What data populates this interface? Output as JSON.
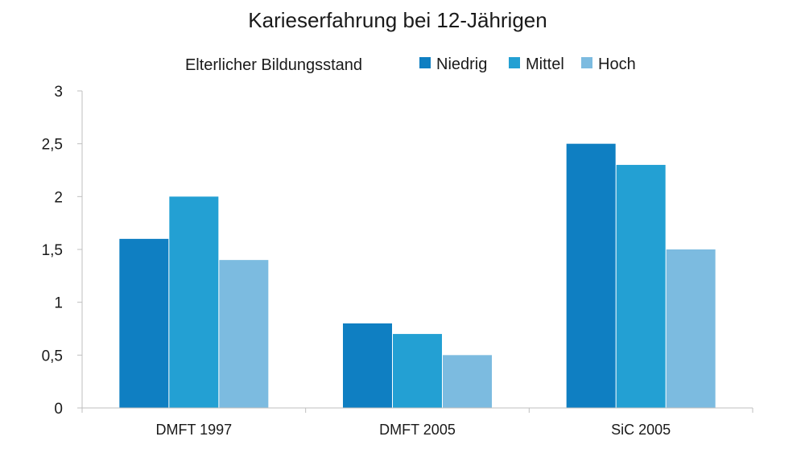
{
  "chart_data": {
    "type": "bar",
    "title": "Karieserfahrung bei 12-Jährigen",
    "legend_title": "Elterlicher Bildungsstand",
    "legend_position": "top",
    "categories": [
      "DMFT 1997",
      "DMFT 2005",
      "SiC 2005"
    ],
    "series": [
      {
        "name": "Niedrig",
        "values": [
          1.6,
          0.8,
          2.5
        ],
        "color": "#0f7fc2"
      },
      {
        "name": "Mittel",
        "values": [
          2.0,
          0.7,
          2.3
        ],
        "color": "#23a0d3"
      },
      {
        "name": "Hoch",
        "values": [
          1.4,
          0.5,
          1.5
        ],
        "color": "#7cbbe0"
      }
    ],
    "y_ticks": [
      "0",
      "0,5",
      "1",
      "1,5",
      "2",
      "2,5",
      "3"
    ],
    "ylim": [
      0,
      3
    ],
    "grid": false,
    "xlabel": "",
    "ylabel": ""
  }
}
